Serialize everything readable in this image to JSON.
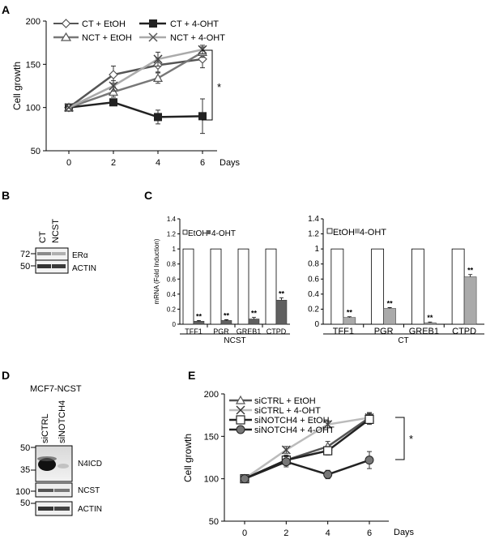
{
  "panel_labels": {
    "a": "A",
    "b": "B",
    "c": "C",
    "d": "D",
    "e": "E"
  },
  "panel_b": {
    "lanes": [
      "CT",
      "NCST"
    ],
    "markers": [
      "72",
      "50"
    ],
    "bands": [
      "ERα",
      "ACTIN"
    ]
  },
  "panel_d": {
    "title": "MCF7-NCST",
    "lanes": [
      "siCTRL",
      "siNOTCH4"
    ],
    "markers": [
      "50",
      "35",
      "100",
      "50"
    ],
    "bands": [
      "N4ICD",
      "NCST",
      "ACTIN"
    ]
  },
  "chart_data": [
    {
      "id": "A",
      "type": "line",
      "xlabel": "Days",
      "ylabel": "Cell growth",
      "x": [
        0,
        2,
        4,
        6
      ],
      "xticks": [
        "0",
        "2",
        "4",
        "6"
      ],
      "ylim": [
        50,
        200
      ],
      "yticks": [
        "50",
        "100",
        "150",
        "200"
      ],
      "significance": "*",
      "series": [
        {
          "name": "CT + EtOH",
          "values": [
            100,
            138,
            149,
            156
          ],
          "errors": [
            0,
            10,
            8,
            10
          ],
          "color": "#555555",
          "marker": "diamond-open"
        },
        {
          "name": "CT + 4-OHT",
          "values": [
            100,
            106,
            89,
            90
          ],
          "errors": [
            0,
            3,
            8,
            20
          ],
          "color": "#222222",
          "marker": "square-filled"
        },
        {
          "name": "NCT + EtOH",
          "values": [
            100,
            118,
            134,
            164
          ],
          "errors": [
            0,
            6,
            6,
            6
          ],
          "color": "#777777",
          "marker": "triangle-open"
        },
        {
          "name": "NCT + 4-OHT",
          "values": [
            100,
            125,
            156,
            167
          ],
          "errors": [
            0,
            6,
            8,
            5
          ],
          "color": "#aaaaaa",
          "marker": "x"
        }
      ]
    },
    {
      "id": "C1",
      "type": "bar",
      "group_label": "NCST",
      "ylabel": "mRNA (Fold Induction)",
      "categories": [
        "TFF1",
        "PGR",
        "GREB1",
        "CTPD"
      ],
      "ylim": [
        0,
        1.4
      ],
      "yticks": [
        "0",
        "0.2",
        "0.4",
        "0.6",
        "0.8",
        "1",
        "1.2",
        "1.4"
      ],
      "legend": "EtOH",
      "legend2": "4-OHT",
      "series": [
        {
          "name": "EtOH",
          "values": [
            1,
            1,
            1,
            1
          ],
          "errors": [
            0,
            0,
            0,
            0
          ],
          "color": "#ffffff"
        },
        {
          "name": "4-OHT",
          "values": [
            0.04,
            0.05,
            0.07,
            0.32
          ],
          "errors": [
            0.01,
            0.01,
            0.02,
            0.03
          ],
          "color": "#606060"
        }
      ],
      "annotations": [
        "**",
        "**",
        "**",
        "**"
      ]
    },
    {
      "id": "C2",
      "type": "bar",
      "group_label": "CT",
      "ylabel": "",
      "categories": [
        "TFF1",
        "PGR",
        "GREB1",
        "CTPD"
      ],
      "ylim": [
        0,
        1.4
      ],
      "yticks": [
        "0",
        "0.2",
        "0.4",
        "0.6",
        "0.8",
        "1",
        "1.2",
        "1.4"
      ],
      "legend": "EtOH",
      "legend2": "4-OHT",
      "series": [
        {
          "name": "EtOH",
          "values": [
            1,
            1,
            1,
            1
          ],
          "errors": [
            0,
            0,
            0,
            0
          ],
          "color": "#ffffff"
        },
        {
          "name": "4-OHT",
          "values": [
            0.09,
            0.21,
            0.02,
            0.63
          ],
          "errors": [
            0.01,
            0.01,
            0.01,
            0.03
          ],
          "color": "#aaaaaa"
        }
      ],
      "annotations": [
        "**",
        "**",
        "**",
        "**"
      ]
    },
    {
      "id": "E",
      "type": "line",
      "xlabel": "Days",
      "ylabel": "Cell growth",
      "x": [
        0,
        2,
        4,
        6
      ],
      "xticks": [
        "0",
        "2",
        "4",
        "6"
      ],
      "ylim": [
        50,
        200
      ],
      "yticks": [
        "50",
        "100",
        "150",
        "200"
      ],
      "significance": "*",
      "series": [
        {
          "name": "siCTRL + EtOH",
          "values": [
            100,
            122,
            138,
            172
          ],
          "errors": [
            0,
            5,
            6,
            6
          ],
          "color": "#555555",
          "marker": "triangle-open"
        },
        {
          "name": "siCTRL + 4-OHT",
          "values": [
            100,
            134,
            164,
            172
          ],
          "errors": [
            0,
            4,
            4,
            5
          ],
          "color": "#bbbbbb",
          "marker": "x"
        },
        {
          "name": "siNOTCH4 + EtOH",
          "values": [
            100,
            122,
            133,
            170
          ],
          "errors": [
            0,
            6,
            5,
            6
          ],
          "color": "#222222",
          "marker": "square-open"
        },
        {
          "name": "siNOTCH4 + 4-OHT",
          "values": [
            100,
            120,
            105,
            122
          ],
          "errors": [
            0,
            6,
            5,
            10
          ],
          "color": "#222222",
          "marker": "circle-filled"
        }
      ]
    }
  ]
}
